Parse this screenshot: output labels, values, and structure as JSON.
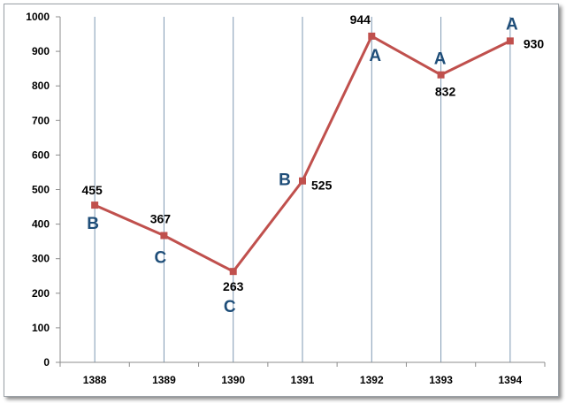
{
  "chart_data": {
    "type": "line",
    "title": "",
    "xlabel": "",
    "ylabel": "",
    "categories": [
      "1388",
      "1389",
      "1390",
      "1391",
      "1392",
      "1393",
      "1394"
    ],
    "series": [
      {
        "values": [
          455,
          367,
          263,
          525,
          944,
          832,
          930
        ],
        "color": "#c0504d"
      }
    ],
    "data_labels": [
      "455",
      "367",
      "263",
      "525",
      "944",
      "832",
      "930"
    ],
    "point_annotations": [
      "B",
      "C",
      "C",
      "B",
      "A",
      "A",
      "A"
    ],
    "annotation_color": "#1f4e79",
    "ylim": [
      0,
      1000
    ],
    "y_ticks": [
      "0",
      "100",
      "200",
      "300",
      "400",
      "500",
      "600",
      "700",
      "800",
      "900",
      "1000"
    ],
    "grid": "vertical lines at each category",
    "grid_color": "#7f99b3",
    "legend": "none"
  }
}
